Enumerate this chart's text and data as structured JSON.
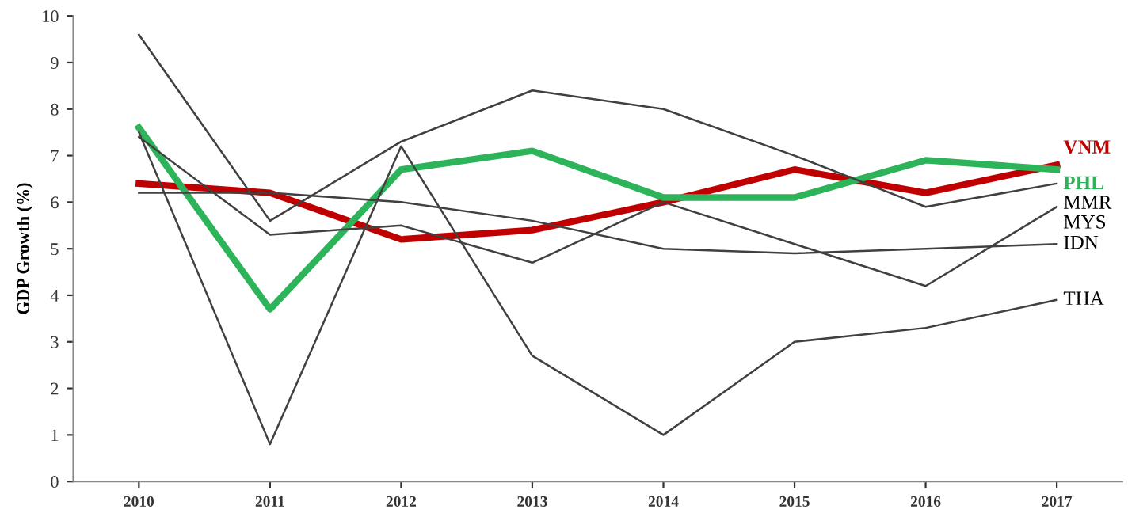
{
  "chart_data": {
    "type": "line",
    "ylabel": "GDP Growth (%)",
    "categories": [
      "2010",
      "2011",
      "2012",
      "2013",
      "2014",
      "2015",
      "2016",
      "2017"
    ],
    "series": [
      {
        "name": "VNM",
        "color": "#c00000",
        "values": [
          6.4,
          6.2,
          5.2,
          5.4,
          6.0,
          6.7,
          6.2,
          6.8
        ]
      },
      {
        "name": "PHL",
        "color": "#2db45a",
        "values": [
          7.6,
          3.7,
          6.7,
          7.1,
          6.1,
          6.1,
          6.9,
          6.7
        ]
      },
      {
        "name": "MMR",
        "color": "#404040",
        "values": [
          9.6,
          5.6,
          7.3,
          8.4,
          8.0,
          7.0,
          5.9,
          6.4
        ]
      },
      {
        "name": "MYS",
        "color": "#404040",
        "values": [
          7.4,
          5.3,
          5.5,
          4.7,
          6.0,
          5.1,
          4.2,
          5.9
        ]
      },
      {
        "name": "IDN",
        "color": "#404040",
        "values": [
          6.2,
          6.2,
          6.0,
          5.6,
          5.0,
          4.9,
          5.0,
          5.1
        ]
      },
      {
        "name": "THA",
        "color": "#404040",
        "values": [
          7.5,
          0.8,
          7.2,
          2.7,
          1.0,
          3.0,
          3.3,
          3.9
        ]
      }
    ],
    "ylim": [
      0,
      10
    ],
    "yticks": [
      0,
      1,
      2,
      3,
      4,
      5,
      6,
      7,
      8,
      9,
      10
    ],
    "grid": false,
    "legend": false,
    "marker": "none",
    "line_style": "solid"
  }
}
